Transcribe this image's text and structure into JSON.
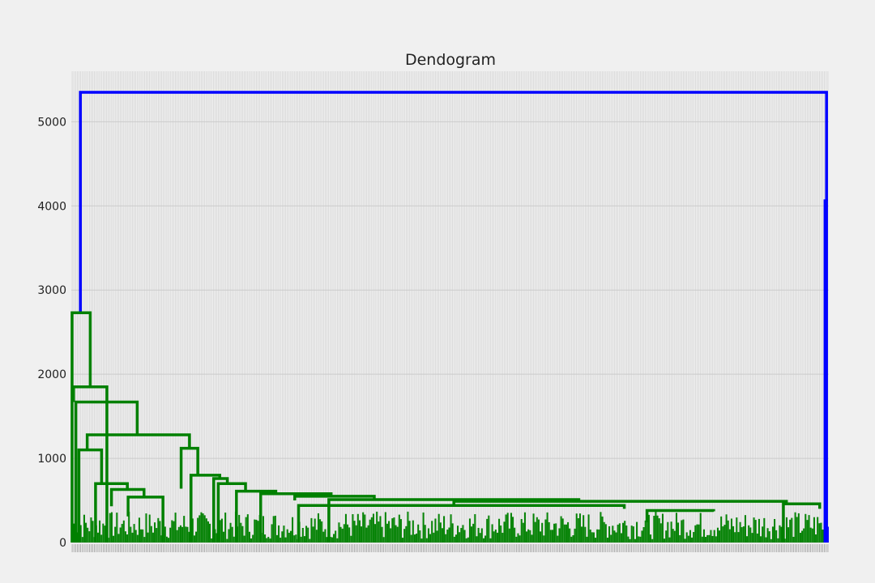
{
  "chart_data": {
    "type": "dendrogram",
    "title": "Dendogram",
    "xlabel": "",
    "ylabel": "",
    "ylim": [
      0,
      5600
    ],
    "yticks": [
      0,
      1000,
      2000,
      3000,
      4000,
      5000
    ],
    "grid": true,
    "legend": "none",
    "leaf_count": 440,
    "colors": {
      "root": "#0000ff",
      "cluster": "#008000",
      "grid": "#cbcbcb",
      "background": "#f0f0f0"
    },
    "links": [
      {
        "color": "root",
        "x1": 0.012,
        "x2": 0.997,
        "h": 5350,
        "h1": 2730,
        "h2": 4060
      },
      {
        "color": "root",
        "x1": 0.995,
        "x2": 0.997,
        "h": 4060,
        "h1": 0,
        "h2": 0
      },
      {
        "color": "cluster",
        "x1": 0.001,
        "x2": 0.025,
        "h": 2730,
        "h1": 0,
        "h2": 1850
      },
      {
        "color": "cluster",
        "x1": 0.003,
        "x2": 0.047,
        "h": 1850,
        "h1": 1670,
        "h2": 0
      },
      {
        "color": "cluster",
        "x1": 0.006,
        "x2": 0.087,
        "h": 1670,
        "h1": 0,
        "h2": 1280
      },
      {
        "color": "cluster",
        "x1": 0.021,
        "x2": 0.156,
        "h": 1280,
        "h1": 1100,
        "h2": 1120
      },
      {
        "color": "cluster",
        "x1": 0.01,
        "x2": 0.04,
        "h": 1100,
        "h1": 0,
        "h2": 700
      },
      {
        "color": "cluster",
        "x1": 0.145,
        "x2": 0.167,
        "h": 1120,
        "h1": 640,
        "h2": 800
      },
      {
        "color": "cluster",
        "x1": 0.032,
        "x2": 0.074,
        "h": 700,
        "h1": 0,
        "h2": 630
      },
      {
        "color": "cluster",
        "x1": 0.053,
        "x2": 0.096,
        "h": 630,
        "h1": 430,
        "h2": 540
      },
      {
        "color": "cluster",
        "x1": 0.075,
        "x2": 0.121,
        "h": 540,
        "h1": 310,
        "h2": 0
      },
      {
        "color": "cluster",
        "x1": 0.158,
        "x2": 0.196,
        "h": 800,
        "h1": 0,
        "h2": 760
      },
      {
        "color": "cluster",
        "x1": 0.188,
        "x2": 0.206,
        "h": 760,
        "h1": 0,
        "h2": 700
      },
      {
        "color": "cluster",
        "x1": 0.194,
        "x2": 0.23,
        "h": 700,
        "h1": 0,
        "h2": 610
      },
      {
        "color": "cluster",
        "x1": 0.218,
        "x2": 0.27,
        "h": 610,
        "h1": 0,
        "h2": 580
      },
      {
        "color": "cluster",
        "x1": 0.25,
        "x2": 0.343,
        "h": 580,
        "h1": 0,
        "h2": 550
      },
      {
        "color": "cluster",
        "x1": 0.295,
        "x2": 0.4,
        "h": 550,
        "h1": 500,
        "h2": 510
      },
      {
        "color": "cluster",
        "x1": 0.34,
        "x2": 0.67,
        "h": 510,
        "h1": 0,
        "h2": 490
      },
      {
        "color": "cluster",
        "x1": 0.505,
        "x2": 0.944,
        "h": 490,
        "h1": 440,
        "h2": 460
      },
      {
        "color": "cluster",
        "x1": 0.3,
        "x2": 0.73,
        "h": 440,
        "h1": 0,
        "h2": 400
      },
      {
        "color": "cluster",
        "x1": 0.76,
        "x2": 0.848,
        "h": 380,
        "h1": 240,
        "h2": 370
      },
      {
        "color": "cluster",
        "x1": 0.94,
        "x2": 0.988,
        "h": 460,
        "h1": 0,
        "h2": 400
      }
    ]
  }
}
